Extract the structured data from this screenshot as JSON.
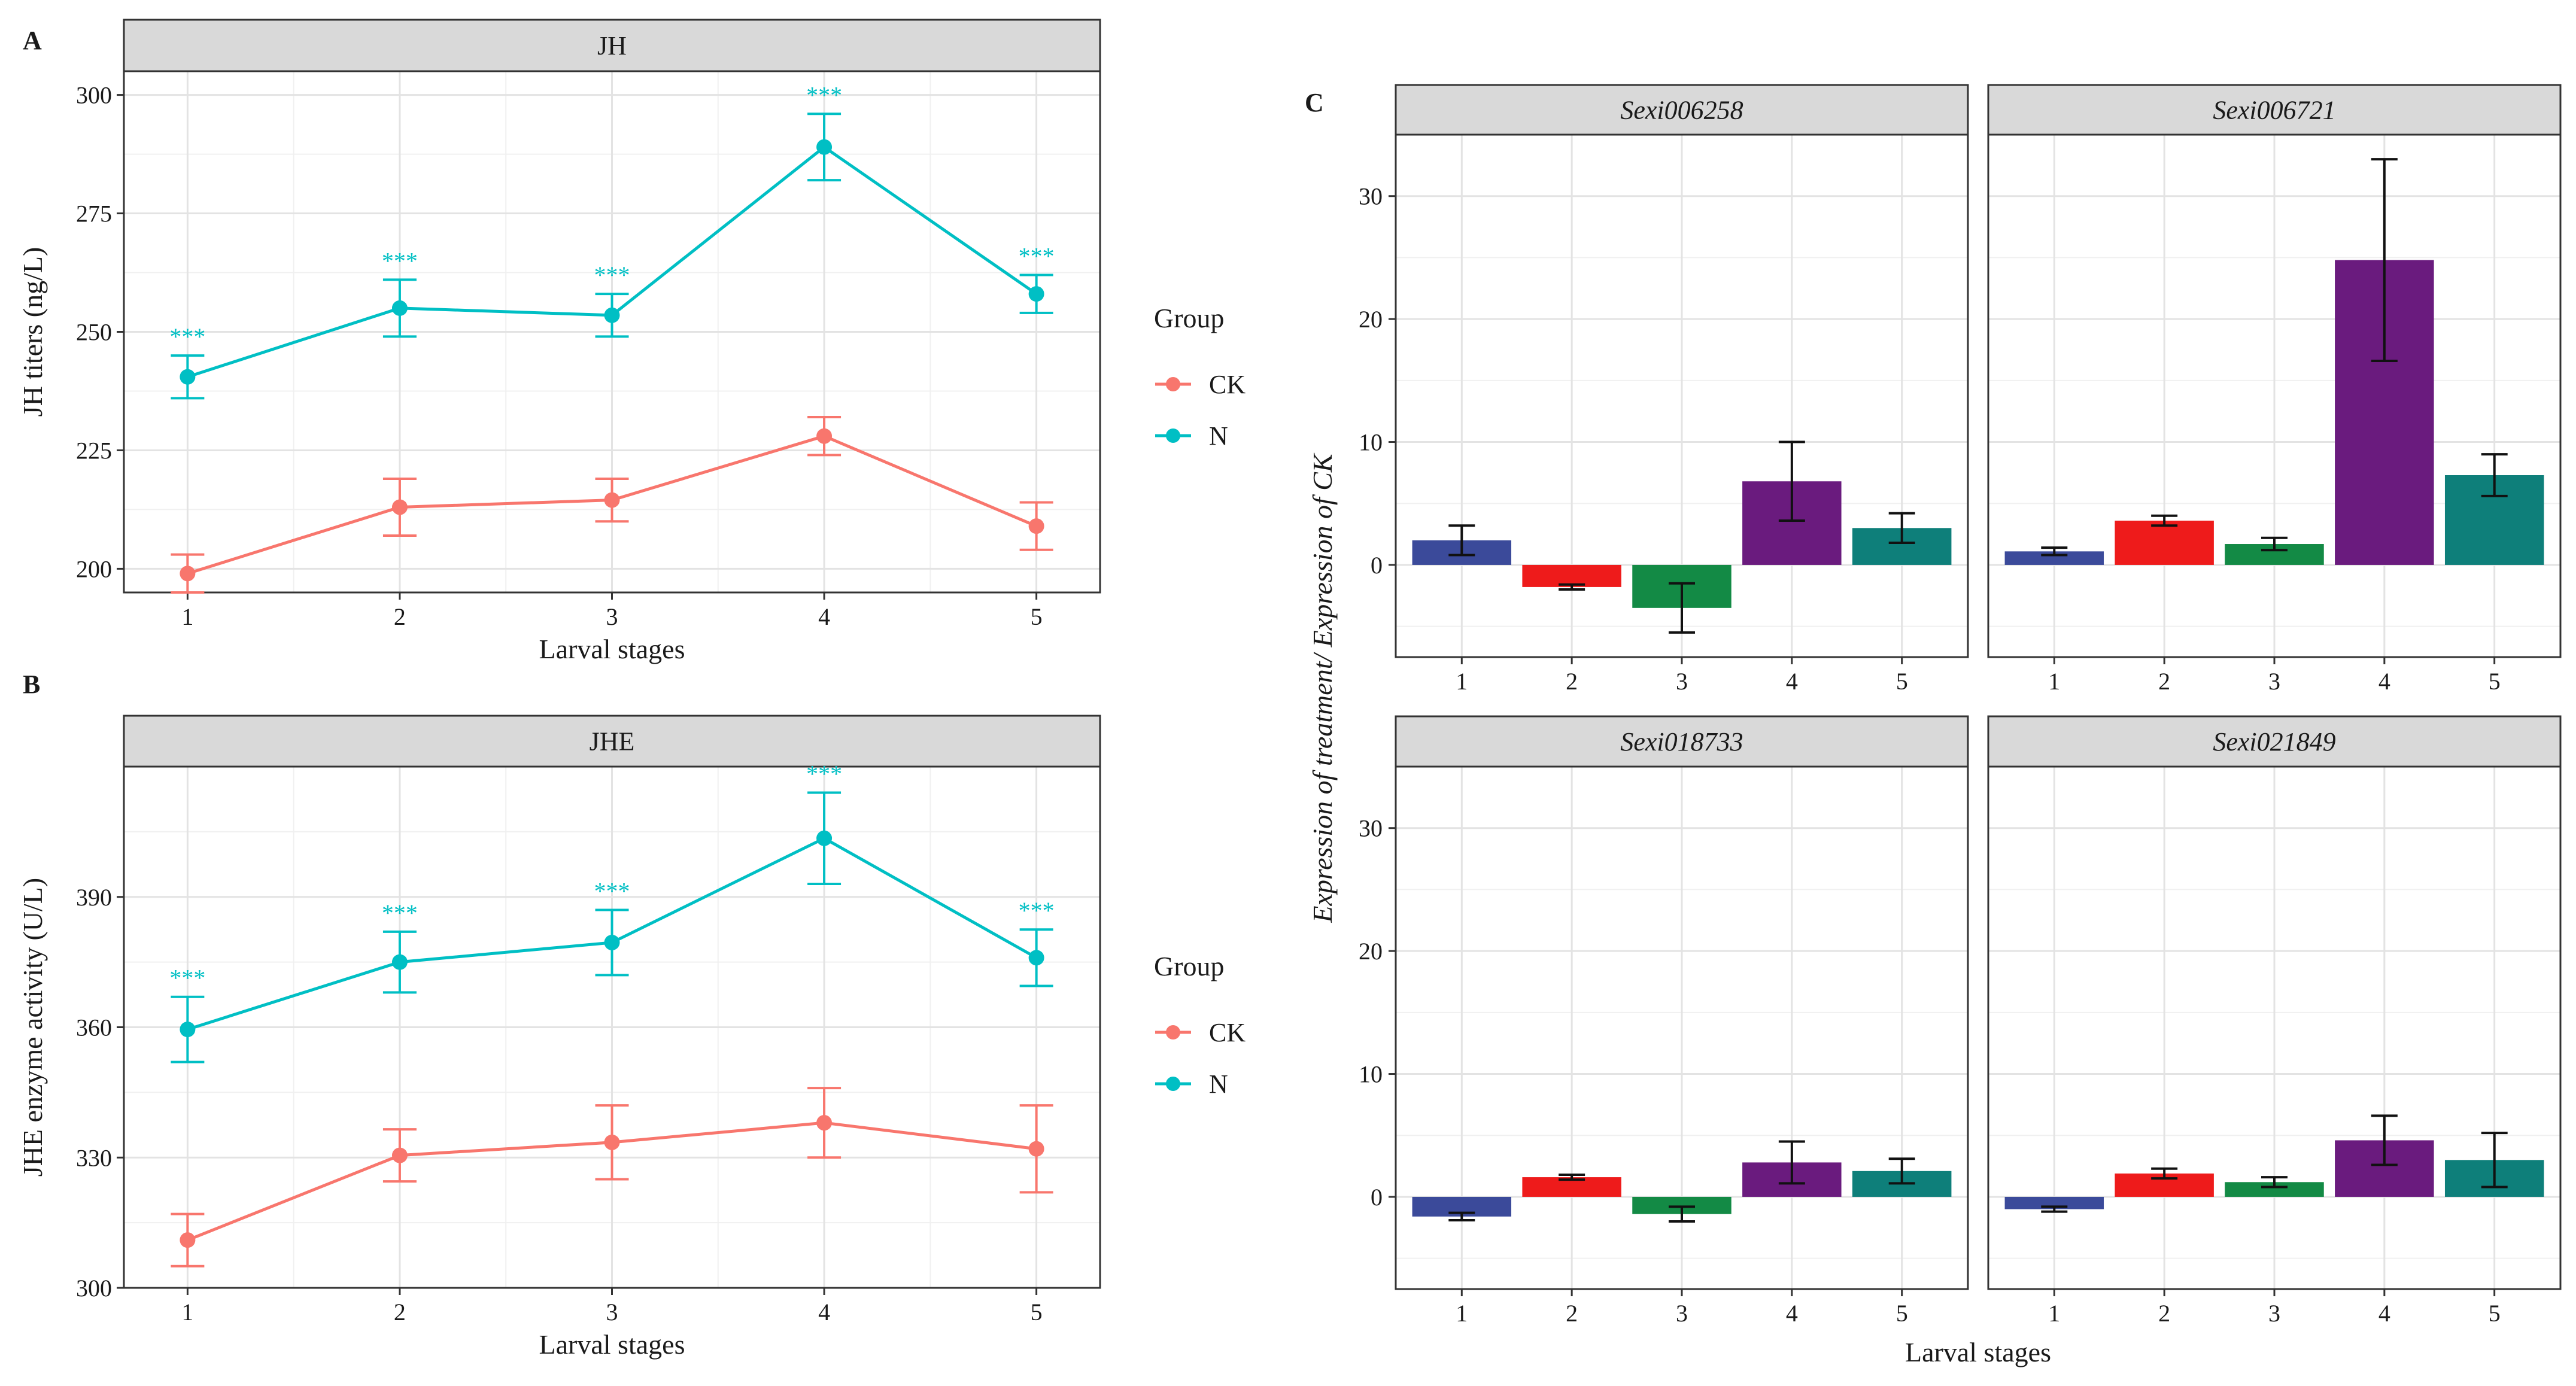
{
  "panels": {
    "a": "A",
    "b": "B",
    "c": "C"
  },
  "chart_data": [
    {
      "type": "line",
      "panel": "A",
      "facet_title": "JH",
      "xlabel": "Larval stages",
      "ylabel": "JH titers (ng/L)",
      "x": [
        1,
        2,
        3,
        4,
        5
      ],
      "xlim": [
        0.7,
        5.3
      ],
      "ylim": [
        195,
        305
      ],
      "yticks": [
        200,
        225,
        250,
        275,
        300
      ],
      "legend": {
        "title": "Group",
        "position": "right",
        "entries": [
          "CK",
          "N"
        ]
      },
      "series": [
        {
          "name": "CK",
          "color": "#F8766D",
          "values": [
            199,
            213,
            214.5,
            228,
            209
          ],
          "err": [
            4,
            6,
            4.5,
            4,
            5
          ]
        },
        {
          "name": "N",
          "color": "#00BFC4",
          "values": [
            240.5,
            255,
            253.5,
            289,
            258
          ],
          "err": [
            4.5,
            6,
            4.5,
            7,
            4
          ]
        }
      ],
      "annotations": [
        "***",
        "***",
        "***",
        "***",
        "***"
      ],
      "annotation_color": "#00BFC4"
    },
    {
      "type": "line",
      "panel": "B",
      "facet_title": "JHE",
      "xlabel": "Larval stages",
      "ylabel": "JHE enzyme activity (U/L)",
      "x": [
        1,
        2,
        3,
        4,
        5
      ],
      "xlim": [
        0.7,
        5.3
      ],
      "ylim": [
        300,
        420
      ],
      "yticks": [
        300,
        330,
        360,
        390
      ],
      "legend": {
        "title": "Group",
        "position": "right",
        "entries": [
          "CK",
          "N"
        ]
      },
      "series": [
        {
          "name": "CK",
          "color": "#F8766D",
          "values": [
            311,
            330.5,
            333.5,
            338,
            332
          ],
          "err": [
            6,
            6,
            8.5,
            8,
            10
          ]
        },
        {
          "name": "N",
          "color": "#00BFC4",
          "values": [
            359.5,
            375,
            379.5,
            403.5,
            376
          ],
          "err": [
            7.5,
            7,
            7.5,
            10.5,
            6.5
          ]
        }
      ],
      "annotations": [
        "***",
        "***",
        "***",
        "***",
        "***"
      ],
      "annotation_color": "#00BFC4"
    },
    {
      "type": "bar",
      "panel": "C",
      "xlabel": "Larval stages",
      "ylabel": "Expression of treatment/ Expression of CK",
      "categories": [
        "1",
        "2",
        "3",
        "4",
        "5"
      ],
      "ylim": [
        -7.5,
        35
      ],
      "yticks": [
        0,
        10,
        20,
        30
      ],
      "bar_colors": [
        "#3B4A9A",
        "#EE1B1B",
        "#138A45",
        "#6A1B7E",
        "#0E7F7A"
      ],
      "facets": [
        {
          "title": "Sexi006258",
          "values": [
            2.0,
            -1.8,
            -3.5,
            6.8,
            3.0
          ],
          "err": [
            1.2,
            0.2,
            2.0,
            3.2,
            1.2
          ]
        },
        {
          "title": "Sexi006721",
          "values": [
            1.1,
            3.6,
            1.7,
            24.8,
            7.3
          ],
          "err": [
            0.3,
            0.4,
            0.5,
            8.2,
            1.7
          ]
        },
        {
          "title": "Sexi018733",
          "values": [
            -1.6,
            1.6,
            -1.4,
            2.8,
            2.1
          ],
          "err": [
            0.3,
            0.2,
            0.6,
            1.7,
            1.0
          ]
        },
        {
          "title": "Sexi021849",
          "values": [
            -1.0,
            1.9,
            1.2,
            4.6,
            3.0
          ],
          "err": [
            0.2,
            0.4,
            0.4,
            2.0,
            2.2
          ]
        }
      ]
    }
  ]
}
